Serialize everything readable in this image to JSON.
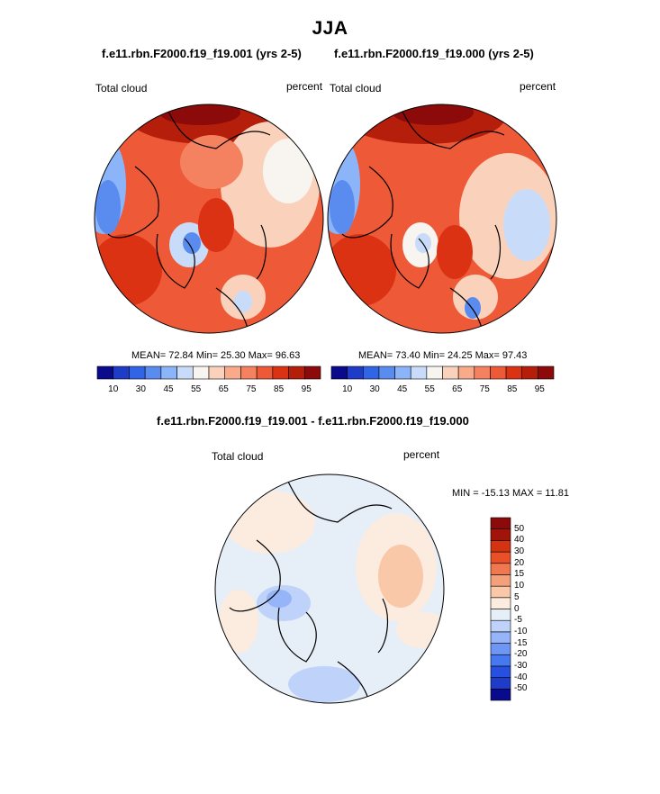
{
  "figure": {
    "title": "JJA",
    "panel_a_title": "f.e11.rbn.F2000.f19_f19.001 (yrs 2-5)",
    "panel_b_title": "f.e11.rbn.F2000.f19_f19.000 (yrs 2-5)",
    "diff_title": "f.e11.rbn.F2000.f19_f19.001 - f.e11.rbn.F2000.f19_f19.000"
  },
  "panel_a": {
    "variable": "Total cloud",
    "units": "percent",
    "stats_text": "MEAN=  72.84  Min=  25.30  Max=  96.63"
  },
  "panel_b": {
    "variable": "Total cloud",
    "units": "percent",
    "stats_text": "MEAN=  73.40  Min=  24.25  Max=  97.43"
  },
  "panel_diff": {
    "variable": "Total cloud",
    "units": "percent",
    "stats_text": "MIN = -15.13 MAX =  11.81"
  },
  "colors": {
    "abs_scale": [
      "#0a0a8c",
      "#1e3cc8",
      "#3264e6",
      "#5a8cf0",
      "#8cb4f8",
      "#c8dcfa",
      "#f8f4f0",
      "#fad2bc",
      "#f8aa8a",
      "#f48260",
      "#ee5a38",
      "#dc3214",
      "#b41e0a",
      "#8c0a0a"
    ],
    "diff_scale": [
      "#0a0a8c",
      "#1e3cc8",
      "#2850e0",
      "#4678f0",
      "#6e96f4",
      "#96b4f8",
      "#bed2fa",
      "#e6eef8",
      "#fcece0",
      "#f8c8a8",
      "#f4a07a",
      "#f07850",
      "#ea5028",
      "#d43210",
      "#a0140a",
      "#8c0a0a"
    ]
  },
  "chart_data": [
    {
      "type": "heatmap",
      "projection": "north polar stereographic",
      "title": "f.e11.rbn.F2000.f19_f19.001 (yrs 2-5)",
      "variable": "Total cloud",
      "units": "percent",
      "mean": 72.84,
      "min": 25.3,
      "max": 96.63,
      "colorbar_levels": [
        10,
        20,
        30,
        40,
        45,
        50,
        55,
        60,
        65,
        70,
        75,
        80,
        85,
        90,
        95
      ],
      "colorbar_tick_labels": [
        "10",
        "30",
        "45",
        "55",
        "65",
        "75",
        "85",
        "95"
      ]
    },
    {
      "type": "heatmap",
      "projection": "north polar stereographic",
      "title": "f.e11.rbn.F2000.f19_f19.000 (yrs 2-5)",
      "variable": "Total cloud",
      "units": "percent",
      "mean": 73.4,
      "min": 24.25,
      "max": 97.43,
      "colorbar_levels": [
        10,
        20,
        30,
        40,
        45,
        50,
        55,
        60,
        65,
        70,
        75,
        80,
        85,
        90,
        95
      ],
      "colorbar_tick_labels": [
        "10",
        "30",
        "45",
        "55",
        "65",
        "75",
        "85",
        "95"
      ]
    },
    {
      "type": "heatmap",
      "projection": "north polar stereographic",
      "title": "f.e11.rbn.F2000.f19_f19.001 - f.e11.rbn.F2000.f19_f19.000",
      "variable": "Total cloud",
      "units": "percent",
      "min": -15.13,
      "max": 11.81,
      "colorbar_levels": [
        -50,
        -40,
        -30,
        -20,
        -15,
        -10,
        -5,
        0,
        5,
        10,
        15,
        20,
        30,
        40,
        50
      ],
      "colorbar_tick_labels": [
        "50",
        "40",
        "30",
        "20",
        "15",
        "10",
        "5",
        "0",
        "-5",
        "-10",
        "-15",
        "-20",
        "-30",
        "-40",
        "-50"
      ]
    }
  ]
}
